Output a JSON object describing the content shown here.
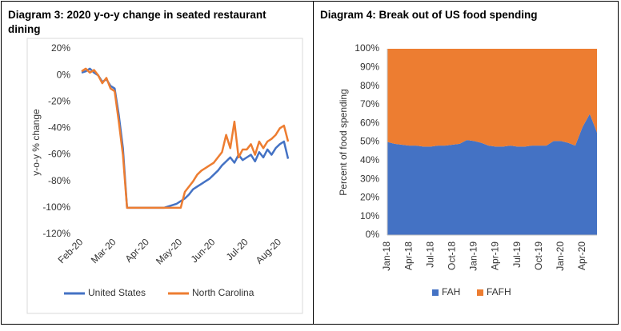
{
  "chart_data": [
    {
      "type": "line",
      "title": "Diagram 3: 2020 y-o-y change in seated restaurant dining",
      "y_label": "y-o-y % change",
      "categories": [
        "Feb-20",
        null,
        null,
        null,
        null,
        null,
        null,
        null,
        "Mar-20",
        null,
        null,
        null,
        null,
        null,
        null,
        null,
        "Apr-20",
        null,
        null,
        null,
        null,
        null,
        null,
        null,
        "May-20",
        null,
        null,
        null,
        null,
        null,
        null,
        null,
        "Jun-20",
        null,
        null,
        null,
        null,
        null,
        null,
        null,
        "Jul-20",
        null,
        null,
        null,
        null,
        null,
        null,
        null,
        "Aug-20",
        null,
        null
      ],
      "series": [
        {
          "name": "United States",
          "color": "#4472c4",
          "values": [
            2,
            3,
            5,
            2,
            0,
            -5,
            -3,
            -8,
            -10,
            -30,
            -55,
            -100,
            -100,
            -100,
            -100,
            -100,
            -100,
            -100,
            -100,
            -100,
            -100,
            -99,
            -98,
            -97,
            -95,
            -93,
            -90,
            -86,
            -84,
            -82,
            -80,
            -78,
            -75,
            -72,
            -68,
            -65,
            -62,
            -66,
            -60,
            -64,
            -62,
            -60,
            -65,
            -58,
            -62,
            -56,
            -60,
            -55,
            -52,
            -50,
            -63
          ]
        },
        {
          "name": "North Carolina",
          "color": "#ed7d31",
          "values": [
            3,
            5,
            2,
            4,
            0,
            -6,
            -2,
            -10,
            -12,
            -35,
            -60,
            -100,
            -100,
            -100,
            -100,
            -100,
            -100,
            -100,
            -100,
            -100,
            -100,
            -100,
            -100,
            -100,
            -100,
            -88,
            -84,
            -80,
            -75,
            -72,
            -70,
            -68,
            -66,
            -62,
            -58,
            -45,
            -55,
            -35,
            -62,
            -56,
            -56,
            -52,
            -60,
            -50,
            -55,
            -50,
            -48,
            -45,
            -40,
            -38,
            -50
          ]
        }
      ],
      "ylim": [
        -120,
        20
      ],
      "yticks": [
        {
          "value": -120,
          "label": "-120%"
        },
        {
          "value": -100,
          "label": "-100%"
        },
        {
          "value": -80,
          "label": "-80%"
        },
        {
          "value": -60,
          "label": "-60%"
        },
        {
          "value": -40,
          "label": "-40%"
        },
        {
          "value": -20,
          "label": "-20%"
        },
        {
          "value": 0,
          "label": "0%"
        },
        {
          "value": 20,
          "label": "20%"
        }
      ],
      "legend": "bottom"
    },
    {
      "type": "stacked_area",
      "title": "Diagram 4: Break out of US food spending",
      "y_label": "Percent of food spending",
      "categories": [
        "Jan-18",
        null,
        null,
        "Apr-18",
        null,
        null,
        "Jul-18",
        null,
        null,
        "Oct-18",
        null,
        null,
        "Jan-19",
        null,
        null,
        "Apr-19",
        null,
        null,
        "Jul-19",
        null,
        null,
        "Oct-19",
        null,
        null,
        "Jan-20",
        null,
        null,
        "Apr-20",
        null,
        null
      ],
      "series": [
        {
          "name": "FAH",
          "color": "#4472c4",
          "values": [
            50,
            49,
            48.5,
            48,
            48,
            47.5,
            47.5,
            48,
            48,
            48.5,
            49,
            51,
            50.5,
            49.5,
            48,
            47.5,
            47.5,
            48,
            47.5,
            47.5,
            48,
            48,
            48,
            50.5,
            50.5,
            49.5,
            48,
            58,
            65,
            55
          ]
        },
        {
          "name": "FAFH",
          "color": "#ed7d31",
          "values": [
            50,
            51,
            51.5,
            52,
            52,
            52.5,
            52.5,
            52,
            52,
            51.5,
            51,
            49,
            49.5,
            50.5,
            52,
            52.5,
            52.5,
            52,
            52.5,
            52.5,
            52,
            52,
            52,
            49.5,
            49.5,
            50.5,
            52,
            42,
            35,
            45
          ]
        }
      ],
      "ylim": [
        0,
        100
      ],
      "yticks": [
        {
          "value": 0,
          "label": "0%"
        },
        {
          "value": 10,
          "label": "10%"
        },
        {
          "value": 20,
          "label": "20%"
        },
        {
          "value": 30,
          "label": "30%"
        },
        {
          "value": 40,
          "label": "40%"
        },
        {
          "value": 50,
          "label": "50%"
        },
        {
          "value": 60,
          "label": "60%"
        },
        {
          "value": 70,
          "label": "70%"
        },
        {
          "value": 80,
          "label": "80%"
        },
        {
          "value": 90,
          "label": "90%"
        },
        {
          "value": 100,
          "label": "100%"
        }
      ],
      "legend": "bottom"
    }
  ]
}
